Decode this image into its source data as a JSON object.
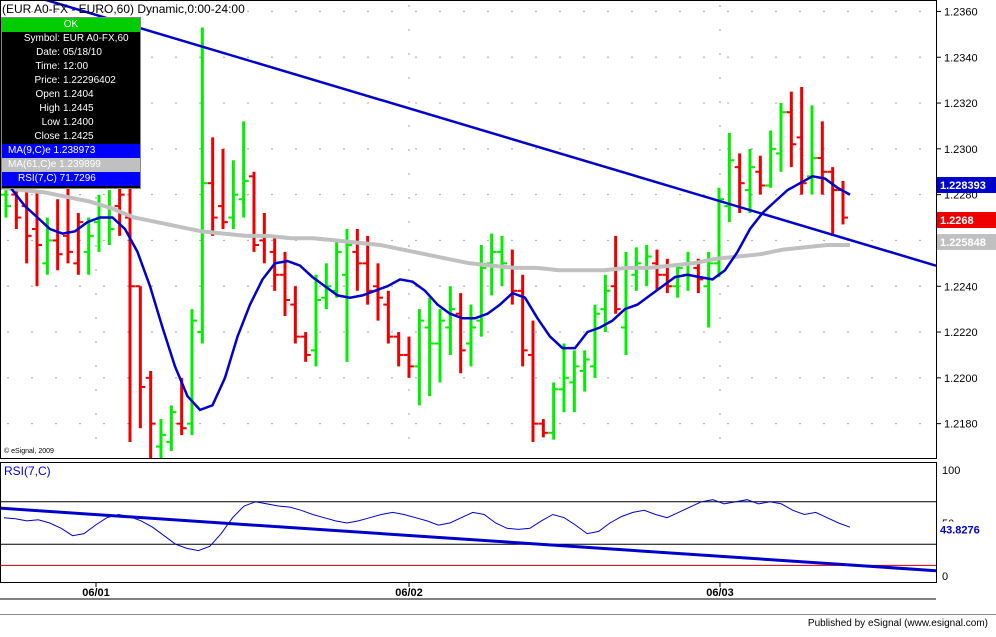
{
  "title": "(EUR A0-FX - EURO,60) Dynamic,0:00-24:00",
  "copyright": "© eSignal, 2009",
  "footer": "Published by eSignal (www.esignal.com)",
  "colors": {
    "up": "#00ee00",
    "down": "#ee0000",
    "ma9": "#0000cc",
    "ma61": "#c0c0c0",
    "trend": "#0000cc",
    "rsi": "#0000cc"
  },
  "info_panel": {
    "status": "OK",
    "rows": [
      {
        "label": "Symbol:",
        "value": "EUR A0-FX,60"
      },
      {
        "label": "Date:",
        "value": "05/18/10"
      },
      {
        "label": "Time:",
        "value": "12:00"
      },
      {
        "label": "Price:",
        "value": "1.22296402"
      },
      {
        "label": "Open",
        "value": "1.2404"
      },
      {
        "label": "High",
        "value": "1.2445"
      },
      {
        "label": "Low",
        "value": "1.2400"
      },
      {
        "label": "Close",
        "value": "1.2425"
      }
    ],
    "ma9": "MA(9,C)e 1.238973",
    "ma61": "MA(61,C)e 1.239899",
    "rsi": "RSI(7,C) 71.7296"
  },
  "chart_data": [
    {
      "type": "ohlc",
      "name": "price",
      "x_labels": [
        "06/01",
        "06/02",
        "06/03"
      ],
      "y_ticks": [
        "1.2360",
        "1.2340",
        "1.2320",
        "1.2300",
        "1.2280",
        "1.2260",
        "1.2240",
        "1.2220",
        "1.2200",
        "1.2180"
      ],
      "ylim": [
        1.2165,
        1.2365
      ],
      "bars": [
        {
          "o": 1.228,
          "h": 1.2285,
          "l": 1.227,
          "c": 1.2275,
          "up": true
        },
        {
          "o": 1.228,
          "h": 1.2285,
          "l": 1.2265,
          "c": 1.227,
          "up": false
        },
        {
          "o": 1.2275,
          "h": 1.2282,
          "l": 1.225,
          "c": 1.2262,
          "up": false
        },
        {
          "o": 1.2265,
          "h": 1.2282,
          "l": 1.224,
          "c": 1.2258,
          "up": false
        },
        {
          "o": 1.225,
          "h": 1.227,
          "l": 1.2245,
          "c": 1.226,
          "up": true
        },
        {
          "o": 1.226,
          "h": 1.2278,
          "l": 1.2247,
          "c": 1.2254,
          "up": false
        },
        {
          "o": 1.2262,
          "h": 1.229,
          "l": 1.225,
          "c": 1.2255,
          "up": false
        },
        {
          "o": 1.225,
          "h": 1.2272,
          "l": 1.2245,
          "c": 1.2268,
          "up": false
        },
        {
          "o": 1.2255,
          "h": 1.227,
          "l": 1.2245,
          "c": 1.2262,
          "up": true
        },
        {
          "o": 1.2268,
          "h": 1.228,
          "l": 1.2255,
          "c": 1.2275,
          "up": true
        },
        {
          "o": 1.227,
          "h": 1.2282,
          "l": 1.2258,
          "c": 1.2265,
          "up": true
        },
        {
          "o": 1.2275,
          "h": 1.2296,
          "l": 1.2262,
          "c": 1.228,
          "up": false
        },
        {
          "o": 1.227,
          "h": 1.2285,
          "l": 1.2172,
          "c": 1.224,
          "up": false
        },
        {
          "o": 1.224,
          "h": 1.224,
          "l": 1.2178,
          "c": 1.2196,
          "up": false
        },
        {
          "o": 1.22,
          "h": 1.2203,
          "l": 1.2165,
          "c": 1.218,
          "up": false
        },
        {
          "o": 1.217,
          "h": 1.2182,
          "l": 1.2165,
          "c": 1.2175,
          "up": true
        },
        {
          "o": 1.2172,
          "h": 1.2188,
          "l": 1.2168,
          "c": 1.2185,
          "up": true
        },
        {
          "o": 1.218,
          "h": 1.22,
          "l": 1.2175,
          "c": 1.2178,
          "up": false
        },
        {
          "o": 1.218,
          "h": 1.223,
          "l": 1.2175,
          "c": 1.2225,
          "up": true
        },
        {
          "o": 1.222,
          "h": 1.2353,
          "l": 1.2215,
          "c": 1.2285,
          "up": true
        },
        {
          "o": 1.2285,
          "h": 1.2305,
          "l": 1.2262,
          "c": 1.227,
          "up": false
        },
        {
          "o": 1.2275,
          "h": 1.23,
          "l": 1.2265,
          "c": 1.2268,
          "up": false
        },
        {
          "o": 1.227,
          "h": 1.2295,
          "l": 1.2265,
          "c": 1.228,
          "up": true
        },
        {
          "o": 1.2278,
          "h": 1.2312,
          "l": 1.227,
          "c": 1.2286,
          "up": true
        },
        {
          "o": 1.2288,
          "h": 1.229,
          "l": 1.2255,
          "c": 1.2258,
          "up": false
        },
        {
          "o": 1.226,
          "h": 1.2272,
          "l": 1.225,
          "c": 1.2262,
          "up": false
        },
        {
          "o": 1.2255,
          "h": 1.2262,
          "l": 1.2238,
          "c": 1.2245,
          "up": false
        },
        {
          "o": 1.2245,
          "h": 1.2255,
          "l": 1.2227,
          "c": 1.2234,
          "up": false
        },
        {
          "o": 1.2232,
          "h": 1.224,
          "l": 1.2215,
          "c": 1.2218,
          "up": false
        },
        {
          "o": 1.2218,
          "h": 1.222,
          "l": 1.2207,
          "c": 1.221,
          "up": false
        },
        {
          "o": 1.2212,
          "h": 1.2245,
          "l": 1.2205,
          "c": 1.2234,
          "up": true
        },
        {
          "o": 1.2235,
          "h": 1.225,
          "l": 1.223,
          "c": 1.224,
          "up": true
        },
        {
          "o": 1.2238,
          "h": 1.226,
          "l": 1.2235,
          "c": 1.2255,
          "up": true
        },
        {
          "o": 1.2245,
          "h": 1.2265,
          "l": 1.2207,
          "c": 1.2258,
          "up": true
        },
        {
          "o": 1.2255,
          "h": 1.2265,
          "l": 1.2238,
          "c": 1.225,
          "up": false
        },
        {
          "o": 1.225,
          "h": 1.2262,
          "l": 1.2232,
          "c": 1.2238,
          "up": false
        },
        {
          "o": 1.224,
          "h": 1.225,
          "l": 1.2225,
          "c": 1.2235,
          "up": false
        },
        {
          "o": 1.2232,
          "h": 1.2238,
          "l": 1.2215,
          "c": 1.2218,
          "up": false
        },
        {
          "o": 1.2218,
          "h": 1.222,
          "l": 1.2205,
          "c": 1.221,
          "up": false
        },
        {
          "o": 1.221,
          "h": 1.2218,
          "l": 1.22,
          "c": 1.2205,
          "up": false
        },
        {
          "o": 1.2205,
          "h": 1.223,
          "l": 1.2188,
          "c": 1.2225,
          "up": true
        },
        {
          "o": 1.2222,
          "h": 1.2235,
          "l": 1.2192,
          "c": 1.2215,
          "up": true
        },
        {
          "o": 1.2215,
          "h": 1.223,
          "l": 1.2198,
          "c": 1.2225,
          "up": true
        },
        {
          "o": 1.2222,
          "h": 1.224,
          "l": 1.221,
          "c": 1.223,
          "up": true
        },
        {
          "o": 1.2228,
          "h": 1.2237,
          "l": 1.2202,
          "c": 1.2212,
          "up": false
        },
        {
          "o": 1.2215,
          "h": 1.2232,
          "l": 1.2205,
          "c": 1.2222,
          "up": true
        },
        {
          "o": 1.2225,
          "h": 1.2258,
          "l": 1.2218,
          "c": 1.2248,
          "up": true
        },
        {
          "o": 1.225,
          "h": 1.2263,
          "l": 1.2236,
          "c": 1.2255,
          "up": true
        },
        {
          "o": 1.2255,
          "h": 1.2262,
          "l": 1.224,
          "c": 1.225,
          "up": true
        },
        {
          "o": 1.2248,
          "h": 1.2256,
          "l": 1.2232,
          "c": 1.2238,
          "up": false
        },
        {
          "o": 1.2238,
          "h": 1.2245,
          "l": 1.2205,
          "c": 1.2212,
          "up": false
        },
        {
          "o": 1.221,
          "h": 1.2225,
          "l": 1.2172,
          "c": 1.218,
          "up": false
        },
        {
          "o": 1.218,
          "h": 1.2182,
          "l": 1.2174,
          "c": 1.2176,
          "up": false
        },
        {
          "o": 1.2176,
          "h": 1.2198,
          "l": 1.2173,
          "c": 1.2195,
          "up": true
        },
        {
          "o": 1.2195,
          "h": 1.2215,
          "l": 1.2185,
          "c": 1.22,
          "up": true
        },
        {
          "o": 1.2198,
          "h": 1.2212,
          "l": 1.2185,
          "c": 1.2205,
          "up": true
        },
        {
          "o": 1.2203,
          "h": 1.2212,
          "l": 1.2194,
          "c": 1.2208,
          "up": true
        },
        {
          "o": 1.2205,
          "h": 1.2232,
          "l": 1.22,
          "c": 1.2228,
          "up": true
        },
        {
          "o": 1.223,
          "h": 1.2245,
          "l": 1.222,
          "c": 1.2238,
          "up": true
        },
        {
          "o": 1.224,
          "h": 1.2262,
          "l": 1.2228,
          "c": 1.223,
          "up": false
        },
        {
          "o": 1.2222,
          "h": 1.2255,
          "l": 1.221,
          "c": 1.2248,
          "up": true
        },
        {
          "o": 1.2245,
          "h": 1.2257,
          "l": 1.2238,
          "c": 1.225,
          "up": true
        },
        {
          "o": 1.2248,
          "h": 1.2258,
          "l": 1.224,
          "c": 1.2253,
          "up": true
        },
        {
          "o": 1.225,
          "h": 1.2256,
          "l": 1.2238,
          "c": 1.2245,
          "up": false
        },
        {
          "o": 1.2245,
          "h": 1.2252,
          "l": 1.2237,
          "c": 1.224,
          "up": false
        },
        {
          "o": 1.224,
          "h": 1.225,
          "l": 1.2235,
          "c": 1.2248,
          "up": true
        },
        {
          "o": 1.2245,
          "h": 1.2255,
          "l": 1.2238,
          "c": 1.225,
          "up": true
        },
        {
          "o": 1.2248,
          "h": 1.2252,
          "l": 1.2237,
          "c": 1.2243,
          "up": false
        },
        {
          "o": 1.224,
          "h": 1.2255,
          "l": 1.2222,
          "c": 1.225,
          "up": true
        },
        {
          "o": 1.225,
          "h": 1.2283,
          "l": 1.2244,
          "c": 1.2278,
          "up": true
        },
        {
          "o": 1.2275,
          "h": 1.2307,
          "l": 1.2268,
          "c": 1.2295,
          "up": true
        },
        {
          "o": 1.2292,
          "h": 1.2298,
          "l": 1.2272,
          "c": 1.2285,
          "up": false
        },
        {
          "o": 1.2282,
          "h": 1.23,
          "l": 1.2272,
          "c": 1.2292,
          "up": true
        },
        {
          "o": 1.229,
          "h": 1.2297,
          "l": 1.228,
          "c": 1.2284,
          "up": false
        },
        {
          "o": 1.2284,
          "h": 1.2308,
          "l": 1.2283,
          "c": 1.23,
          "up": true
        },
        {
          "o": 1.2298,
          "h": 1.232,
          "l": 1.229,
          "c": 1.2316,
          "up": true
        },
        {
          "o": 1.2316,
          "h": 1.2325,
          "l": 1.2292,
          "c": 1.2302,
          "up": false
        },
        {
          "o": 1.2305,
          "h": 1.2327,
          "l": 1.228,
          "c": 1.2285,
          "up": false
        },
        {
          "o": 1.2288,
          "h": 1.2319,
          "l": 1.228,
          "c": 1.2296,
          "up": true
        },
        {
          "o": 1.2296,
          "h": 1.2312,
          "l": 1.228,
          "c": 1.229,
          "up": false
        },
        {
          "o": 1.229,
          "h": 1.2292,
          "l": 1.2262,
          "c": 1.2282,
          "up": false
        },
        {
          "o": 1.2282,
          "h": 1.2286,
          "l": 1.2267,
          "c": 1.227,
          "up": false
        }
      ],
      "price_labels": [
        {
          "text": "1.228393",
          "color": "#0000cc"
        },
        {
          "text": "1.2268",
          "color": "#ee0000"
        },
        {
          "text": "1.225848",
          "color": "#c0c0c0"
        }
      ],
      "ma9": [
        1.229,
        1.2282,
        1.2275,
        1.227,
        1.2265,
        1.2263,
        1.2264,
        1.2268,
        1.227,
        1.227,
        1.2265,
        1.2255,
        1.224,
        1.2222,
        1.2205,
        1.2192,
        1.2186,
        1.2188,
        1.22,
        1.2218,
        1.2232,
        1.2243,
        1.225,
        1.2251,
        1.2249,
        1.2244,
        1.224,
        1.2236,
        1.2235,
        1.2236,
        1.2238,
        1.224,
        1.2243,
        1.2242,
        1.2238,
        1.2232,
        1.2228,
        1.2226,
        1.2226,
        1.2228,
        1.2232,
        1.2237,
        1.2235,
        1.2226,
        1.2218,
        1.2213,
        1.2213,
        1.222,
        1.2222,
        1.2225,
        1.223,
        1.2232,
        1.2236,
        1.224,
        1.2244,
        1.2245,
        1.2244,
        1.2243,
        1.2247,
        1.2255,
        1.2265,
        1.2272,
        1.2277,
        1.2282,
        1.2285,
        1.2288,
        1.2287,
        1.2283,
        1.228
      ],
      "ma61": [
        1.2283,
        1.2282,
        1.2281,
        1.2279,
        1.2277,
        1.2274,
        1.227,
        1.2268,
        1.2266,
        1.2264,
        1.2263,
        1.2262,
        1.2262,
        1.2261,
        1.2261,
        1.226,
        1.2259,
        1.2258,
        1.2256,
        1.2254,
        1.2252,
        1.225,
        1.2249,
        1.2248,
        1.2248,
        1.2247,
        1.2247,
        1.2247,
        1.2248,
        1.2248,
        1.2249,
        1.225,
        1.2252,
        1.2253,
        1.2254,
        1.2256,
        1.2257,
        1.2258,
        1.2258
      ],
      "trendline": {
        "from": [
          0,
          1.2371
        ],
        "to": [
          1,
          1.2249
        ]
      }
    },
    {
      "type": "line",
      "name": "RSI(7,C)",
      "value_label": "43.8276",
      "y_ticks": [
        "100",
        "50",
        "0"
      ],
      "ylim": [
        0,
        100
      ],
      "levels": [
        70,
        30
      ],
      "values": [
        55,
        54,
        52,
        53,
        50,
        45,
        38,
        40,
        48,
        55,
        58,
        56,
        52,
        46,
        38,
        30,
        26,
        24,
        28,
        40,
        55,
        66,
        70,
        68,
        66,
        65,
        62,
        58,
        55,
        52,
        50,
        52,
        55,
        58,
        60,
        58,
        55,
        52,
        48,
        50,
        55,
        60,
        58,
        50,
        45,
        44,
        45,
        52,
        58,
        55,
        48,
        40,
        42,
        50,
        56,
        60,
        62,
        58,
        55,
        60,
        65,
        70,
        72,
        68,
        70,
        72,
        68,
        70,
        68,
        62,
        58,
        60,
        55,
        50,
        46
      ],
      "trendline": {
        "from": [
          0,
          64
        ],
        "to": [
          1,
          5
        ]
      }
    }
  ]
}
